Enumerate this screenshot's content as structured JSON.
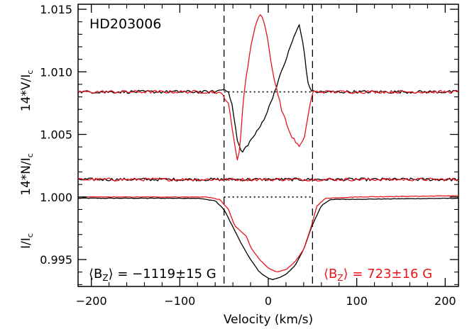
{
  "chart_data": {
    "type": "line",
    "star": "HD203006",
    "xlabel": "Velocity (km/s)",
    "xlim": [
      -215,
      215
    ],
    "ylim": [
      0.99285,
      1.0154
    ],
    "xticks": [
      -200,
      -100,
      0,
      100,
      200
    ],
    "yticks": [
      0.995,
      1.0,
      1.005,
      1.01,
      1.015
    ],
    "xtick_labels": [
      "−200",
      "−100",
      "0",
      "100",
      "200"
    ],
    "ytick_labels": [
      "0.995",
      "1.000",
      "1.005",
      "1.010",
      "1.015"
    ],
    "ylabels": {
      "V": "14*V/I",
      "N": "14*N/I",
      "I": "I/I",
      "subscript": "c"
    },
    "reference_lines": {
      "vertical_dashed_x": [
        -50,
        50
      ],
      "dotted_levels_y": [
        1.0084,
        1.0
      ]
    },
    "annotations": {
      "bz_black": {
        "prefix": "⟨B",
        "sub": "Z",
        "suffix": "⟩ = −1119±15 G"
      },
      "bz_red": {
        "prefix": "⟨B",
        "sub": "Z",
        "suffix": "⟩ = 723±16 G"
      }
    },
    "colors": {
      "black": "#000000",
      "red": "#e8141c"
    },
    "series": [
      {
        "color": "black",
        "panel": "V",
        "points": [
          [
            -215,
            1.0084
          ],
          [
            -60,
            1.0084
          ],
          [
            -52,
            1.0086
          ],
          [
            -45,
            1.0085
          ],
          [
            -40,
            1.007
          ],
          [
            -35,
            1.0045
          ],
          [
            -30,
            1.0035
          ],
          [
            -25,
            1.004
          ],
          [
            -20,
            1.0045
          ],
          [
            -10,
            1.0055
          ],
          [
            0,
            1.007
          ],
          [
            10,
            1.009
          ],
          [
            20,
            1.011
          ],
          [
            30,
            1.013
          ],
          [
            35,
            1.0137
          ],
          [
            40,
            1.012
          ],
          [
            45,
            1.009
          ],
          [
            50,
            1.0084
          ],
          [
            215,
            1.0084
          ]
        ]
      },
      {
        "color": "red",
        "panel": "V",
        "points": [
          [
            -215,
            1.0084
          ],
          [
            -60,
            1.0084
          ],
          [
            -52,
            1.0082
          ],
          [
            -45,
            1.0075
          ],
          [
            -40,
            1.005
          ],
          [
            -35,
            1.003
          ],
          [
            -32,
            1.004
          ],
          [
            -28,
            1.008
          ],
          [
            -20,
            1.012
          ],
          [
            -12,
            1.0144
          ],
          [
            -8,
            1.0146
          ],
          [
            -3,
            1.0135
          ],
          [
            5,
            1.01
          ],
          [
            15,
            1.007
          ],
          [
            25,
            1.005
          ],
          [
            35,
            1.004
          ],
          [
            40,
            1.0045
          ],
          [
            45,
            1.0065
          ],
          [
            50,
            1.0084
          ],
          [
            215,
            1.0084
          ]
        ]
      },
      {
        "color": "black",
        "panel": "N",
        "points": [
          [
            -215,
            1.0014
          ],
          [
            215,
            1.0014
          ]
        ]
      },
      {
        "color": "red",
        "panel": "N",
        "points": [
          [
            -215,
            1.0014
          ],
          [
            215,
            1.0014
          ]
        ]
      },
      {
        "color": "black",
        "panel": "I",
        "points": [
          [
            -215,
            0.9999
          ],
          [
            -80,
            0.9999
          ],
          [
            -60,
            0.9997
          ],
          [
            -50,
            0.999
          ],
          [
            -40,
            0.9976
          ],
          [
            -30,
            0.9962
          ],
          [
            -20,
            0.995
          ],
          [
            -10,
            0.994
          ],
          [
            0,
            0.9935
          ],
          [
            5,
            0.9934
          ],
          [
            10,
            0.9935
          ],
          [
            20,
            0.9938
          ],
          [
            30,
            0.9945
          ],
          [
            40,
            0.9958
          ],
          [
            50,
            0.9978
          ],
          [
            60,
            0.9993
          ],
          [
            70,
            0.9998
          ],
          [
            215,
            0.9999
          ]
        ]
      },
      {
        "color": "red",
        "panel": "I",
        "points": [
          [
            -215,
            1.0
          ],
          [
            -70,
            1.0
          ],
          [
            -55,
            0.9998
          ],
          [
            -45,
            0.999
          ],
          [
            -38,
            0.9977
          ],
          [
            -30,
            0.9972
          ],
          [
            -25,
            0.9969
          ],
          [
            -20,
            0.996
          ],
          [
            -10,
            0.995
          ],
          [
            0,
            0.9943
          ],
          [
            10,
            0.994
          ],
          [
            20,
            0.9942
          ],
          [
            30,
            0.9948
          ],
          [
            40,
            0.9958
          ],
          [
            48,
            0.9975
          ],
          [
            55,
            0.9993
          ],
          [
            65,
            0.9999
          ],
          [
            100,
            1.0
          ],
          [
            215,
            1.0001
          ]
        ]
      }
    ]
  }
}
